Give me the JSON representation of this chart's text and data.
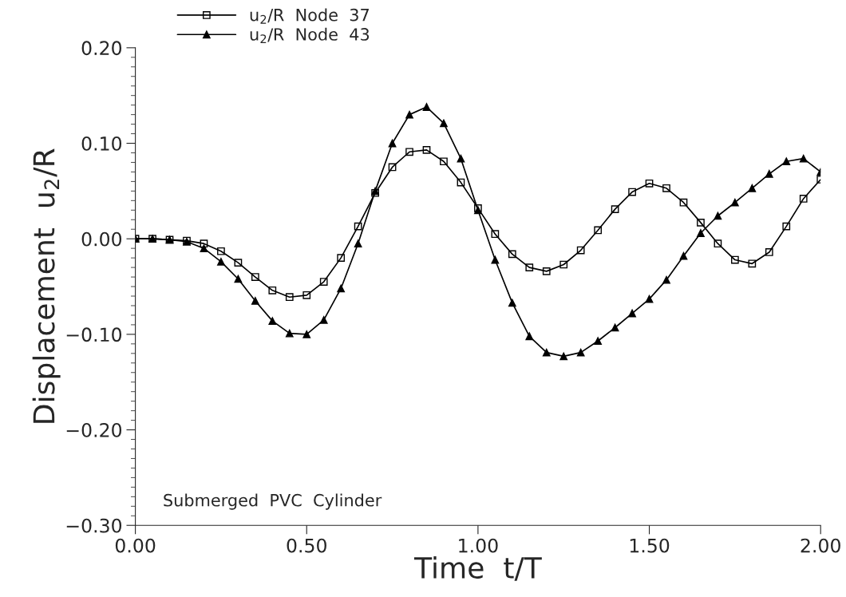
{
  "chart_data": {
    "type": "line",
    "xlabel": "Time  t/T",
    "ylabel": "Displacement  u$_{2}$/R",
    "x": [
      0,
      0.05,
      0.1,
      0.15,
      0.2,
      0.25,
      0.3,
      0.35,
      0.4,
      0.45,
      0.5,
      0.55,
      0.6,
      0.65,
      0.7,
      0.75,
      0.8,
      0.85,
      0.9,
      0.95,
      1.0,
      1.05,
      1.1,
      1.15,
      1.2,
      1.25,
      1.3,
      1.35,
      1.4,
      1.45,
      1.5,
      1.55,
      1.6,
      1.65,
      1.7,
      1.75,
      1.8,
      1.85,
      1.9,
      1.95,
      2.0
    ],
    "series": [
      {
        "name": "u$_{2}$/R  Node  37",
        "color": "#000000",
        "marker": "square",
        "values": [
          0,
          0,
          -0.001,
          -0.002,
          -0.005,
          -0.013,
          -0.025,
          -0.04,
          -0.054,
          -0.061,
          -0.059,
          -0.045,
          -0.02,
          0.013,
          0.048,
          0.075,
          0.091,
          0.093,
          0.081,
          0.059,
          0.032,
          0.005,
          -0.016,
          -0.03,
          -0.034,
          -0.027,
          -0.012,
          0.009,
          0.031,
          0.049,
          0.058,
          0.053,
          0.038,
          0.017,
          -0.005,
          -0.022,
          -0.026,
          -0.014,
          0.013,
          0.042,
          0.062
        ]
      },
      {
        "name": "u$_{2}$/R  Node  43",
        "color": "#000000",
        "marker": "triangle",
        "values": [
          0,
          0,
          -0.001,
          -0.003,
          -0.01,
          -0.024,
          -0.042,
          -0.065,
          -0.086,
          -0.099,
          -0.1,
          -0.085,
          -0.052,
          -0.005,
          0.05,
          0.1,
          0.13,
          0.138,
          0.121,
          0.084,
          0.03,
          -0.022,
          -0.067,
          -0.102,
          -0.119,
          -0.123,
          -0.119,
          -0.107,
          -0.093,
          -0.078,
          -0.063,
          -0.043,
          -0.018,
          0.006,
          0.024,
          0.038,
          0.053,
          0.068,
          0.081,
          0.084,
          0.07
        ]
      }
    ],
    "xlim": [
      0,
      2.0
    ],
    "xticks": [
      {
        "value": 0,
        "label": "0.00"
      },
      {
        "value": 0.5,
        "label": "0.50"
      },
      {
        "value": 1.0,
        "label": "1.00"
      },
      {
        "value": 1.5,
        "label": "1.50"
      },
      {
        "value": 2.0,
        "label": "2.00"
      }
    ],
    "ylim": [
      -0.3,
      0.2
    ],
    "yticks": [
      {
        "value": -0.3,
        "label": "−0.30"
      },
      {
        "value": -0.2,
        "label": "−0.20"
      },
      {
        "value": -0.1,
        "label": "−0.10"
      },
      {
        "value": 0,
        "label": "0.00"
      },
      {
        "value": 0.1,
        "label": "0.10"
      },
      {
        "value": 0.2,
        "label": "0.20"
      }
    ],
    "grid": false,
    "legend": "top left",
    "line_style": "solid",
    "annotations": [
      "Submerged  PVC  Cylinder"
    ]
  }
}
